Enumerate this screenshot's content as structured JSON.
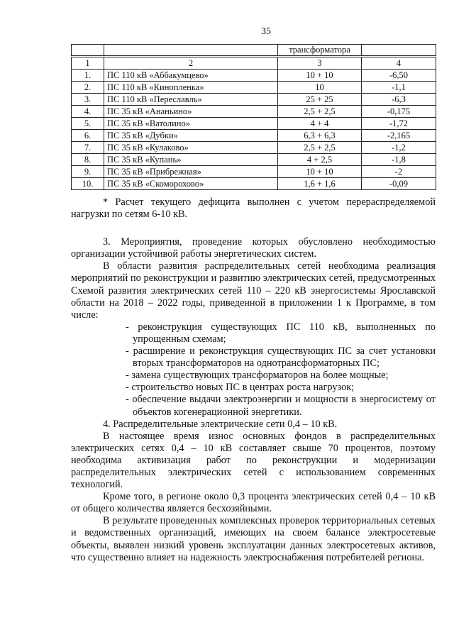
{
  "page_number": "35",
  "table": {
    "header_fragment": [
      "",
      "",
      "трансформатора",
      ""
    ],
    "column_numbers": [
      "1",
      "2",
      "3",
      "4"
    ],
    "rows": [
      [
        "1.",
        "ПС 110 кВ «Аббакумцево»",
        "10 + 10",
        "-6,50"
      ],
      [
        "2.",
        "ПС 110 кВ «Кинопленка»",
        "10",
        "-1,1"
      ],
      [
        "3.",
        "ПС 110 кВ «Переславль»",
        "25 + 25",
        "-6,3"
      ],
      [
        "4.",
        "ПС 35 кВ «Ананьино»",
        "2,5 + 2,5",
        "-0,175"
      ],
      [
        "5.",
        "ПС 35 кВ «Ватолино»",
        "4 + 4",
        "-1,72"
      ],
      [
        "6.",
        "ПС 35 кВ «Дубки»",
        "6,3 + 6,3",
        "-2,165"
      ],
      [
        "7.",
        "ПС 35 кВ «Кулаково»",
        "2,5 + 2,5",
        "-1,2"
      ],
      [
        "8.",
        "ПС 35 кВ «Купань»",
        "4 + 2,5",
        "-1,8"
      ],
      [
        "9.",
        "ПС 35 кВ «Прибрежная»",
        "10 + 10",
        "-2"
      ],
      [
        "10.",
        "ПС 35 кВ «Скоморохово»",
        "1,6 + 1,6",
        "-0,09"
      ]
    ]
  },
  "text": {
    "footnote": "* Расчет текущего дефицита выполнен с учетом перераспределяемой нагрузки по сетям 6-10 кВ.",
    "section3_title": "3. Мероприятия, проведение которых обусловлено необходимостью организации устойчивой работы энергетических систем.",
    "section3_para": "В области развития распределительных сетей необходима реализация мероприятий по реконструкции и развитию электрических сетей, предусмотренных Схемой развития электрических сетей 110 – 220 кВ энергосистемы Ярославской области на 2018 – 2022 годы, приведенной в приложении 1 к Программе, в том числе:",
    "bullets": [
      "- реконструкция существующих ПС 110 кВ, выполненных по упрощенным схемам;",
      "- расширение и реконструкция существующих ПС за счет установки вторых трансформаторов на однотрансформаторных ПС;",
      "- замена существующих трансформаторов на более мощные;",
      "- строительство новых ПС в центрах роста нагрузок;",
      "- обеспечение выдачи электроэнергии и мощности в энергосистему от объектов когенерационной энергетики."
    ],
    "section4_title": "4. Распределительные электрические сети 0,4 – 10 кВ.",
    "section4_para1": "В настоящее время износ основных фондов в распределительных электрических сетях 0,4 – 10 кВ составляет свыше 70 процентов, поэтому необходима активизация работ по реконструкции и модернизации распределительных электрических сетей с использованием современных технологий.",
    "section4_para2": "Кроме того, в регионе около 0,3 процента электрических сетей 0,4 – 10 кВ от общего количества является бесхозяйными.",
    "section4_para3": "В результате проведенных комплексных проверок территориальных сетевых и ведомственных организаций, имеющих на своем балансе электросетевые объекты, выявлен низкий уровень эксплуатации данных электросетевых активов, что существенно влияет на надежность электроснабжения потребителей региона."
  }
}
